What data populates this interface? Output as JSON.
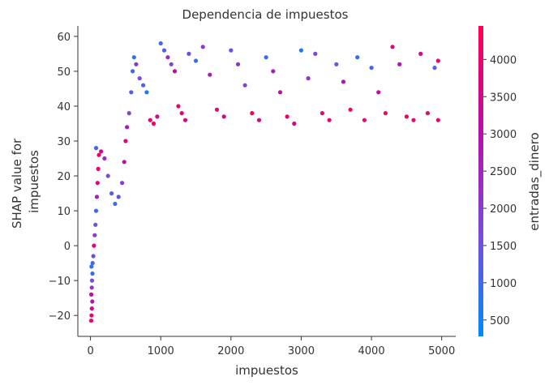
{
  "chart_data": {
    "type": "scatter",
    "title": "Dependencia de impuestos",
    "xlabel": "impuestos",
    "ylabel_lines": [
      "SHAP value for",
      "impuestos"
    ],
    "xlim": [
      -180,
      5200
    ],
    "ylim": [
      -26,
      63
    ],
    "xticks": [
      0,
      1000,
      2000,
      3000,
      4000,
      5000
    ],
    "xtick_labels": [
      "0",
      "1000",
      "2000",
      "3000",
      "4000",
      "5000"
    ],
    "yticks": [
      -20,
      -10,
      0,
      10,
      20,
      30,
      40,
      50,
      60
    ],
    "ytick_labels": [
      "−20",
      "−10",
      "0",
      "10",
      "20",
      "30",
      "40",
      "50",
      "60"
    ],
    "colorbar": {
      "label": "entradas_dinero",
      "range": [
        280,
        4450
      ],
      "ticks": [
        500,
        1000,
        1500,
        2000,
        2500,
        3000,
        3500,
        4000
      ],
      "tick_labels": [
        "500",
        "1000",
        "1500",
        "2000",
        "2500",
        "3000",
        "3500",
        "4000"
      ],
      "colors": [
        "#008afb",
        "#7a4ad9",
        "#b70fa6",
        "#ff0052"
      ]
    },
    "series": [
      {
        "points": [
          [
            10,
            -21.5,
            3900
          ],
          [
            15,
            -20,
            4100
          ],
          [
            20,
            -18,
            3600
          ],
          [
            25,
            -16,
            2900
          ],
          [
            12,
            -14,
            3300
          ],
          [
            18,
            -12,
            2100
          ],
          [
            22,
            -10,
            1600
          ],
          [
            28,
            -8,
            900
          ],
          [
            14,
            -6,
            700
          ],
          [
            30,
            -5,
            1200
          ],
          [
            40,
            -3,
            1500
          ],
          [
            50,
            0,
            3800
          ],
          [
            60,
            3,
            1900
          ],
          [
            70,
            6,
            1300
          ],
          [
            80,
            10,
            1000
          ],
          [
            90,
            14,
            2600
          ],
          [
            100,
            18,
            3700
          ],
          [
            110,
            22,
            4000
          ],
          [
            120,
            26,
            4200
          ],
          [
            80,
            28,
            1100
          ],
          [
            150,
            27,
            3500
          ],
          [
            200,
            25,
            2400
          ],
          [
            250,
            20,
            1700
          ],
          [
            300,
            15,
            1200
          ],
          [
            350,
            12,
            900
          ],
          [
            400,
            14,
            1400
          ],
          [
            450,
            18,
            2000
          ],
          [
            480,
            24,
            3000
          ],
          [
            500,
            30,
            3600
          ],
          [
            520,
            34,
            2800
          ],
          [
            550,
            38,
            1800
          ],
          [
            580,
            44,
            1300
          ],
          [
            600,
            50,
            900
          ],
          [
            620,
            54,
            800
          ],
          [
            650,
            52,
            2200
          ],
          [
            700,
            48,
            1600
          ],
          [
            750,
            46,
            1100
          ],
          [
            800,
            44,
            700
          ],
          [
            850,
            36,
            3900
          ],
          [
            900,
            35,
            4300
          ],
          [
            950,
            37,
            3400
          ],
          [
            1000,
            58,
            1000
          ],
          [
            1050,
            56,
            1200
          ],
          [
            1100,
            54,
            2500
          ],
          [
            1150,
            52,
            1800
          ],
          [
            1200,
            50,
            3100
          ],
          [
            1250,
            40,
            4100
          ],
          [
            1300,
            38,
            3800
          ],
          [
            1350,
            36,
            3500
          ],
          [
            1400,
            55,
            1400
          ],
          [
            1500,
            53,
            900
          ],
          [
            1600,
            57,
            2000
          ],
          [
            1700,
            49,
            2700
          ],
          [
            1800,
            39,
            4000
          ],
          [
            1900,
            37,
            3600
          ],
          [
            2000,
            56,
            1500
          ],
          [
            2100,
            52,
            2300
          ],
          [
            2200,
            46,
            1900
          ],
          [
            2300,
            38,
            4200
          ],
          [
            2400,
            36,
            3700
          ],
          [
            2500,
            54,
            1000
          ],
          [
            2600,
            50,
            2600
          ],
          [
            2700,
            44,
            3200
          ],
          [
            2800,
            37,
            4100
          ],
          [
            2900,
            35,
            3500
          ],
          [
            3000,
            56,
            700
          ],
          [
            3100,
            48,
            2100
          ],
          [
            3200,
            55,
            1700
          ],
          [
            3300,
            38,
            4000
          ],
          [
            3400,
            36,
            3800
          ],
          [
            3500,
            52,
            1300
          ],
          [
            3600,
            47,
            2800
          ],
          [
            3700,
            39,
            4300
          ],
          [
            3800,
            54,
            900
          ],
          [
            3900,
            36,
            3900
          ],
          [
            4000,
            51,
            1100
          ],
          [
            4100,
            44,
            3300
          ],
          [
            4200,
            38,
            4100
          ],
          [
            4300,
            57,
            3700
          ],
          [
            4400,
            52,
            2900
          ],
          [
            4500,
            37,
            4200
          ],
          [
            4600,
            36,
            3900
          ],
          [
            4700,
            55,
            3600
          ],
          [
            4800,
            38,
            4000
          ],
          [
            4900,
            51,
            1200
          ],
          [
            4950,
            36,
            3800
          ],
          [
            4950,
            53,
            4000
          ]
        ]
      }
    ]
  }
}
